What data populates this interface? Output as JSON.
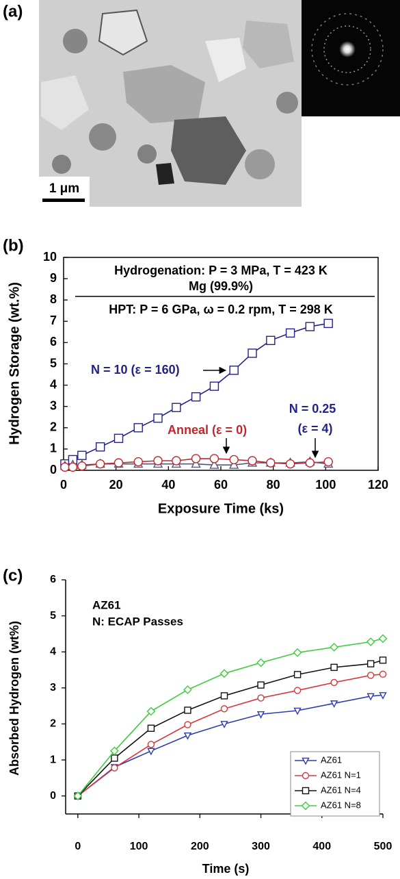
{
  "figure_a": {
    "panel_label": "(a)",
    "scale_bar": "1 μm"
  },
  "chart_data": [
    {
      "type": "line",
      "panel_label": "(b)",
      "xlabel": "Exposure Time (ks)",
      "ylabel": "Hydrogen Storage (wt.%)",
      "xlim": [
        0,
        120
      ],
      "xticks": [
        0,
        20,
        40,
        60,
        80,
        100,
        120
      ],
      "ylim": [
        0,
        10
      ],
      "yticks": [
        0,
        1,
        2,
        3,
        4,
        5,
        6,
        7,
        8,
        9,
        10
      ],
      "frame": true,
      "x": [
        0.5,
        3.5,
        7,
        14,
        21,
        28.5,
        36,
        43,
        50.5,
        57.5,
        65,
        72,
        79,
        86.5,
        94,
        101
      ],
      "series": [
        {
          "color": "#22228a",
          "marker": "square",
          "values": [
            0.3,
            0.5,
            0.7,
            1.1,
            1.5,
            2.0,
            2.45,
            2.95,
            3.45,
            3.95,
            4.7,
            5.5,
            6.1,
            6.45,
            6.75,
            6.9
          ]
        },
        {
          "color": "#55557a",
          "marker": "triangle",
          "values": [
            0.2,
            0.25,
            0.25,
            0.3,
            0.3,
            0.3,
            0.3,
            0.3,
            0.3,
            0.25,
            0.25,
            0.35,
            0.35,
            0.35,
            0.4,
            0.3
          ]
        },
        {
          "color": "#c0282d",
          "marker": "circle",
          "values": [
            0.15,
            0.15,
            0.2,
            0.3,
            0.35,
            0.4,
            0.45,
            0.45,
            0.55,
            0.55,
            0.5,
            0.45,
            0.35,
            0.3,
            0.35,
            0.4
          ]
        }
      ],
      "annotations": [
        {
          "text": "Hydrogenation: P = 3 MPa, T = 423 K",
          "color": "#000000"
        },
        {
          "text": "Mg (99.9%)",
          "color": "#000000"
        },
        {
          "text": "HPT: P = 6 GPa, ω = 0.2 rpm, T = 298 K",
          "color": "#000000"
        },
        {
          "text": "N = 10 (ε = 160)",
          "color": "#22228a"
        },
        {
          "text": "Anneal (ε = 0)",
          "color": "#c0282d"
        },
        {
          "text": "N = 0.25",
          "color": "#22228a"
        },
        {
          "text": "(ε = 4)",
          "color": "#22228a"
        }
      ]
    },
    {
      "type": "line",
      "panel_label": "(c)",
      "xlabel": "Time (s)",
      "ylabel": "Absorbed Hydrogen (wt%)",
      "xlim": [
        -20,
        500
      ],
      "xticks": [
        0,
        100,
        200,
        300,
        400,
        500
      ],
      "ylim": [
        -0.5,
        6
      ],
      "yticks": [
        0,
        1,
        2,
        3,
        4,
        5,
        6
      ],
      "frame": false,
      "legend": "lower right",
      "x": [
        0,
        60,
        120,
        180,
        240,
        300,
        360,
        420,
        480,
        500
      ],
      "series": [
        {
          "name": "AZ61",
          "color": "#2b3bb0",
          "marker": "triangle-down",
          "values": [
            0,
            0.8,
            1.25,
            1.68,
            2.0,
            2.27,
            2.37,
            2.57,
            2.77,
            2.8
          ]
        },
        {
          "name": "AZ61 N=1",
          "color": "#d8373a",
          "marker": "circle",
          "values": [
            0,
            0.78,
            1.43,
            1.98,
            2.42,
            2.72,
            2.93,
            3.15,
            3.35,
            3.38
          ]
        },
        {
          "name": "AZ61 N=4",
          "color": "#111111",
          "marker": "square",
          "values": [
            0,
            1.05,
            1.88,
            2.38,
            2.78,
            3.08,
            3.37,
            3.57,
            3.67,
            3.77
          ]
        },
        {
          "name": "AZ61 N=8",
          "color": "#3ccf3c",
          "marker": "diamond",
          "values": [
            0,
            1.25,
            2.35,
            2.95,
            3.4,
            3.7,
            3.98,
            4.13,
            4.28,
            4.37
          ]
        }
      ],
      "annotations": [
        {
          "text": "AZ61",
          "color": "#000000"
        },
        {
          "text": "N: ECAP Passes",
          "color": "#000000"
        }
      ]
    }
  ]
}
